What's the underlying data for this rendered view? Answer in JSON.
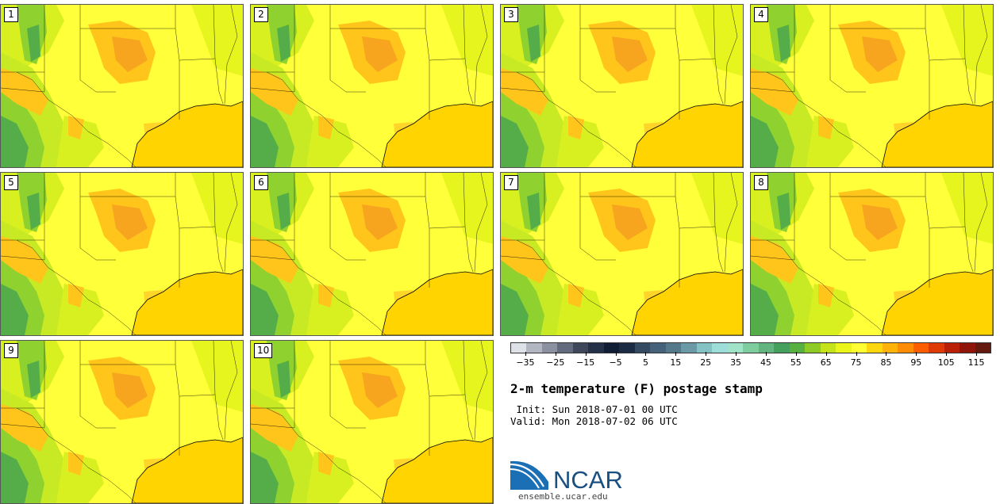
{
  "panels": [
    {
      "label": "1"
    },
    {
      "label": "2"
    },
    {
      "label": "3"
    },
    {
      "label": "4"
    },
    {
      "label": "5"
    },
    {
      "label": "6"
    },
    {
      "label": "7"
    },
    {
      "label": "8"
    },
    {
      "label": "9"
    },
    {
      "label": "10"
    }
  ],
  "colorbar": {
    "colors": [
      "#dfe1e8",
      "#b2b6c1",
      "#8b91a0",
      "#636a7d",
      "#3f475b",
      "#253148",
      "#0f1d35",
      "#1a2b43",
      "#334a61",
      "#45627a",
      "#55798b",
      "#6b9aa6",
      "#85c2c3",
      "#9ddfd8",
      "#a1e3c8",
      "#7fcd9f",
      "#62b57f",
      "#44a05c",
      "#57b03f",
      "#8ecb26",
      "#c4e31a",
      "#ebf51a",
      "#ffff33",
      "#ffd70e",
      "#ffb308",
      "#ff8c04",
      "#ff5e00",
      "#df3a06",
      "#b92007",
      "#8f150a",
      "#641a0f"
    ],
    "tick_values": [
      -35,
      -25,
      -15,
      -5,
      5,
      15,
      25,
      35,
      45,
      55,
      65,
      75,
      85,
      95,
      105,
      115
    ],
    "tick_labels": [
      "−35",
      "−25",
      "−15",
      "−5",
      "5",
      "15",
      "25",
      "35",
      "45",
      "55",
      "65",
      "75",
      "85",
      "95",
      "105",
      "115"
    ],
    "min": -40,
    "max": 120
  },
  "title": "2-m temperature (F) postage stamp",
  "init_line": " Init: Sun 2018-07-01 00 UTC",
  "valid_line": "Valid: Mon 2018-07-02 06 UTC",
  "logo_text": "NCAR",
  "logo_url": "ensemble.ucar.edu",
  "colors": {
    "land_base": "#ffff3a",
    "warm": "#ffc51a",
    "hot": "#f7a51f",
    "gulf": "#ffd400",
    "cool_light": "#c8ea24",
    "cool_mid": "#8fd12e",
    "cool_dark": "#55ad4a",
    "ncar_blue": "#1a4f82"
  }
}
